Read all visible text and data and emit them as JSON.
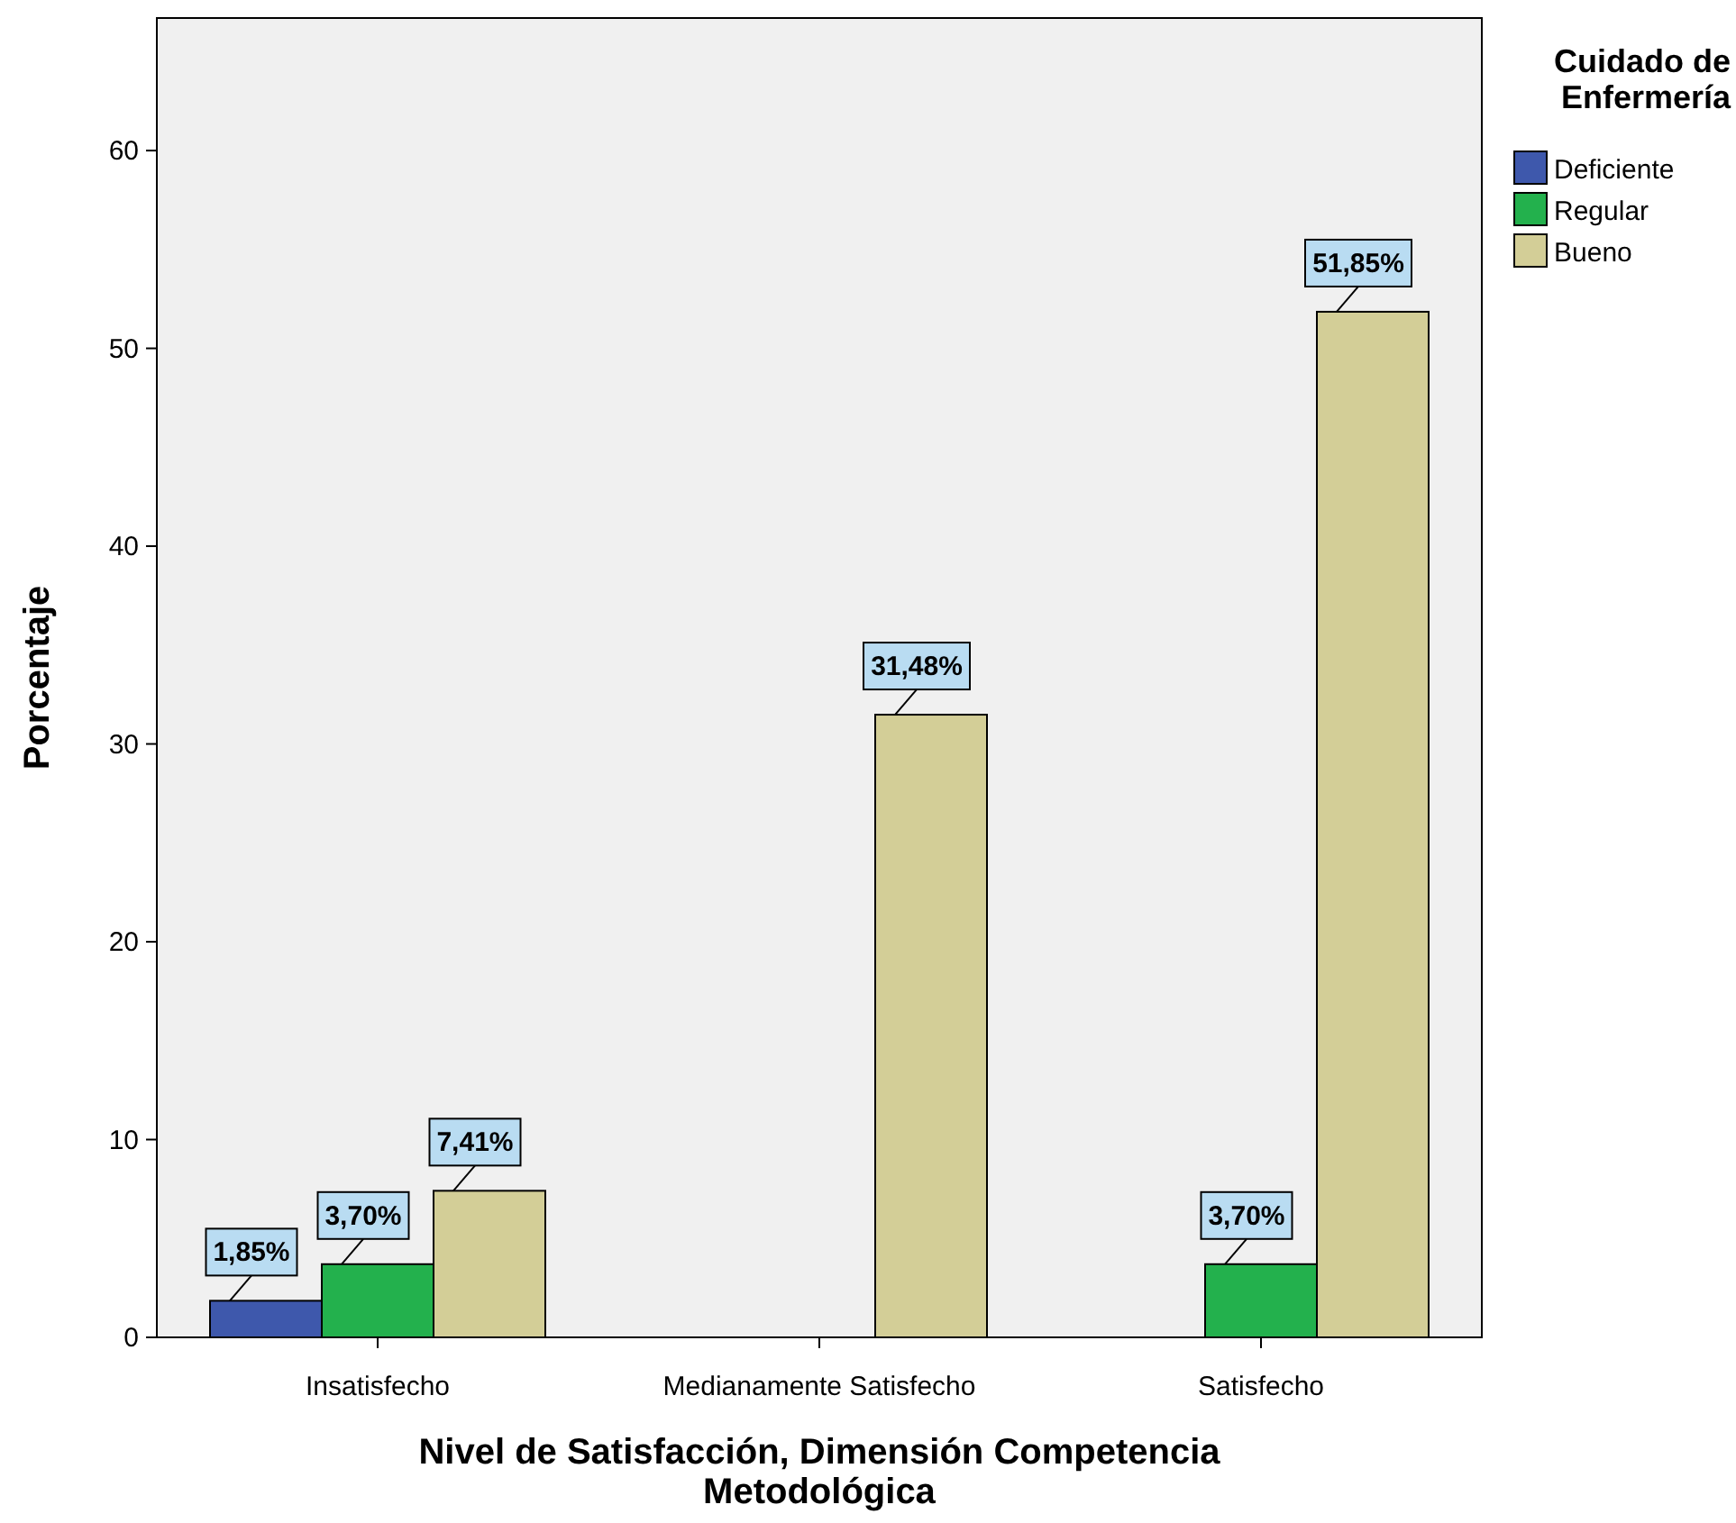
{
  "chart_data": {
    "type": "bar",
    "xlabel": "Nivel de Satisfacción, Dimensión Competencia Metodológica",
    "ylabel": "Porcentaje",
    "legend_title": "Cuidado de Enfermería",
    "categories": [
      "Insatisfecho",
      "Medianamente Satisfecho",
      "Satisfecho"
    ],
    "series": [
      {
        "name": "Deficiente",
        "color": "#3e58ac",
        "values": [
          1.85,
          null,
          null
        ],
        "value_labels": [
          "1,85%",
          null,
          null
        ]
      },
      {
        "name": "Regular",
        "color": "#23b14d",
        "values": [
          3.7,
          null,
          3.7
        ],
        "value_labels": [
          "3,70%",
          null,
          "3,70%"
        ]
      },
      {
        "name": "Bueno",
        "color": "#d3ce97",
        "values": [
          7.41,
          31.48,
          51.85
        ],
        "value_labels": [
          "7,41%",
          "31,48%",
          "51,85%"
        ]
      }
    ],
    "ylim": [
      0,
      66.7
    ],
    "yticks": [
      0,
      10,
      20,
      30,
      40,
      50,
      60
    ],
    "grid": false,
    "legend": "top right"
  }
}
